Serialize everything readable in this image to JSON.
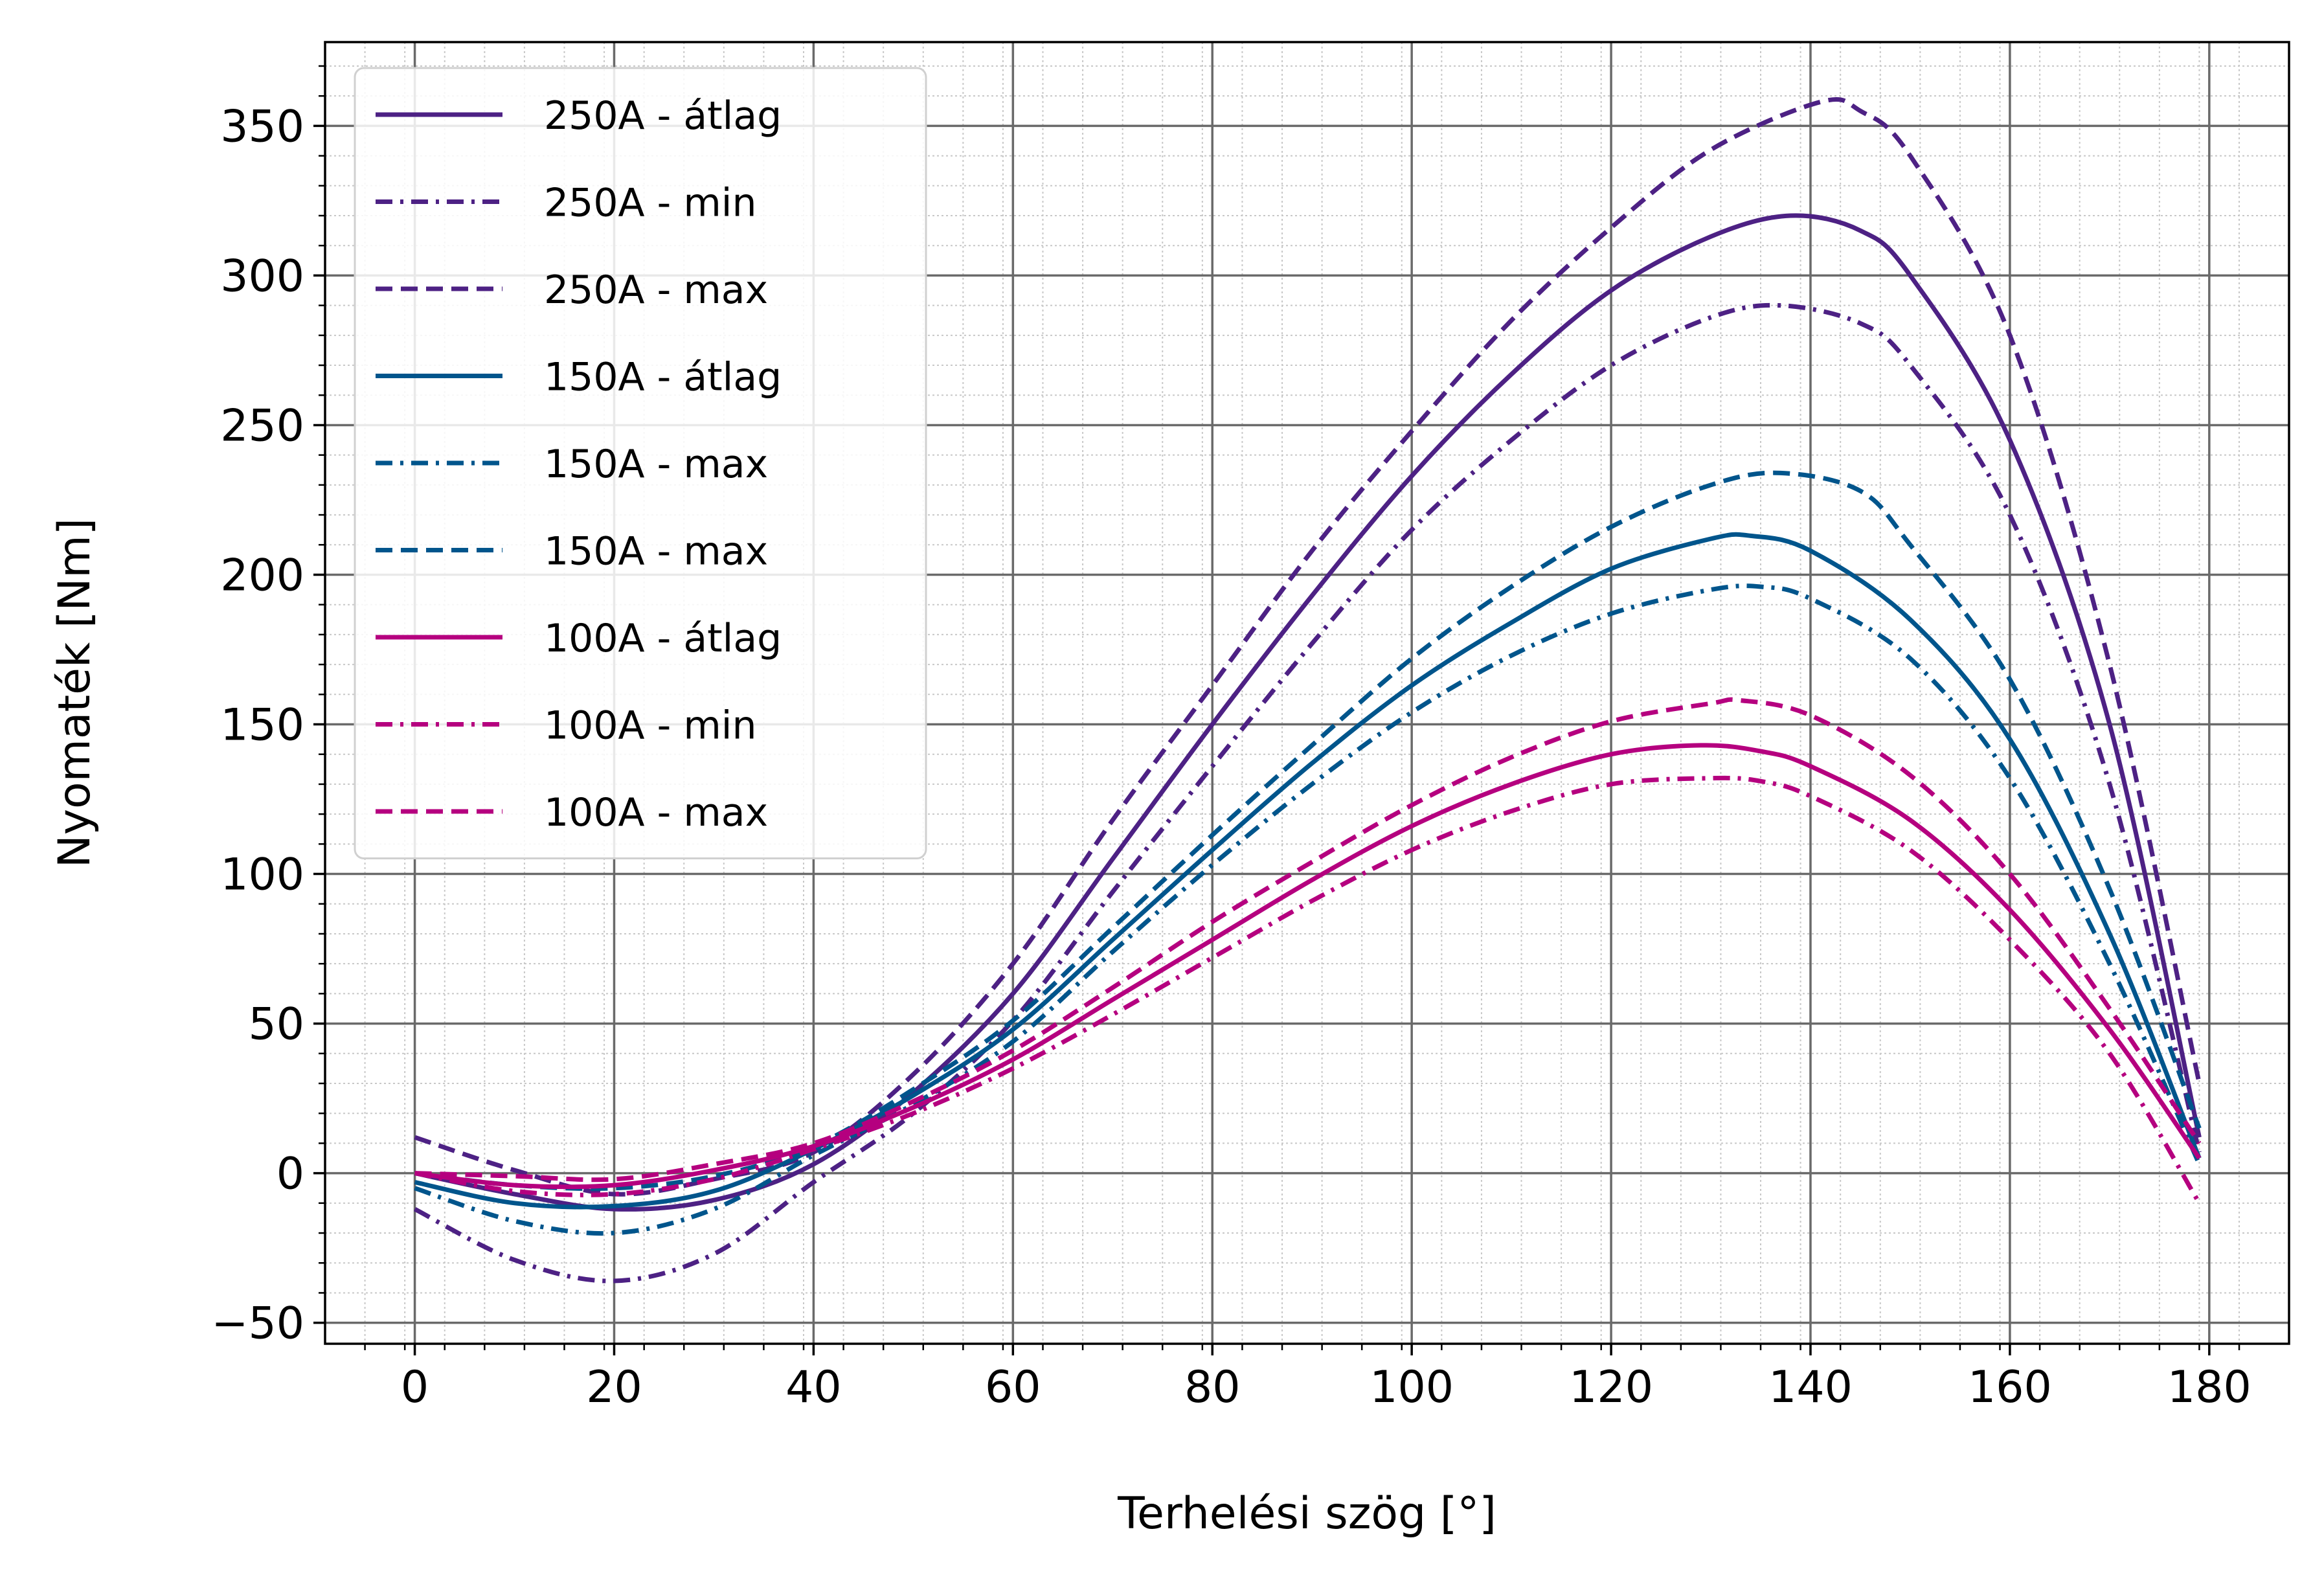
{
  "chart_data": {
    "type": "line",
    "title": "",
    "xlabel": "Terhelési szög [°]",
    "ylabel": "Nyomaték [Nm]",
    "xlim": [
      -9,
      188
    ],
    "ylim": [
      -57,
      378
    ],
    "x_ticks": [
      0,
      20,
      40,
      60,
      80,
      100,
      120,
      140,
      160,
      180
    ],
    "y_ticks": [
      -50,
      0,
      50,
      100,
      150,
      200,
      250,
      300,
      350
    ],
    "x_tick_labels": [
      "0",
      "20",
      "40",
      "60",
      "80",
      "100",
      "120",
      "140",
      "160",
      "180"
    ],
    "y_tick_labels": [
      "−50",
      "0",
      "50",
      "100",
      "150",
      "200",
      "250",
      "300",
      "350"
    ],
    "grid": {
      "major": true,
      "minor": true
    },
    "legend_position": "upper-left",
    "colors": {
      "250A": "#4d2184",
      "150A": "#00558c",
      "100A": "#b5007f"
    },
    "series": [
      {
        "name": "250A - átlag",
        "color": "#4d2184",
        "dash": "solid",
        "values": [
          [
            0,
            0
          ],
          [
            10,
            -7
          ],
          [
            20,
            -12
          ],
          [
            30,
            -9
          ],
          [
            40,
            3
          ],
          [
            50,
            27
          ],
          [
            60,
            60
          ],
          [
            70,
            105
          ],
          [
            80,
            150
          ],
          [
            90,
            193
          ],
          [
            100,
            233
          ],
          [
            110,
            267
          ],
          [
            120,
            295
          ],
          [
            130,
            313
          ],
          [
            138,
            320
          ],
          [
            145,
            315
          ],
          [
            150,
            300
          ],
          [
            160,
            245
          ],
          [
            170,
            150
          ],
          [
            179,
            12
          ]
        ]
      },
      {
        "name": "250A - min",
        "color": "#4d2184",
        "dash": "dashdot",
        "values": [
          [
            0,
            -12
          ],
          [
            10,
            -29
          ],
          [
            20,
            -36
          ],
          [
            30,
            -27
          ],
          [
            40,
            -3
          ],
          [
            50,
            20
          ],
          [
            60,
            51
          ],
          [
            70,
            94
          ],
          [
            80,
            136
          ],
          [
            90,
            177
          ],
          [
            100,
            215
          ],
          [
            110,
            245
          ],
          [
            120,
            270
          ],
          [
            130,
            286
          ],
          [
            137,
            290
          ],
          [
            145,
            284
          ],
          [
            150,
            270
          ],
          [
            160,
            220
          ],
          [
            170,
            130
          ],
          [
            179,
            7
          ]
        ]
      },
      {
        "name": "250A - max",
        "color": "#4d2184",
        "dash": "dashed",
        "values": [
          [
            0,
            12
          ],
          [
            10,
            1
          ],
          [
            20,
            -7
          ],
          [
            30,
            -2
          ],
          [
            40,
            7
          ],
          [
            50,
            33
          ],
          [
            60,
            70
          ],
          [
            70,
            118
          ],
          [
            80,
            163
          ],
          [
            90,
            208
          ],
          [
            100,
            248
          ],
          [
            110,
            285
          ],
          [
            120,
            316
          ],
          [
            130,
            342
          ],
          [
            141,
            358
          ],
          [
            145,
            355
          ],
          [
            150,
            340
          ],
          [
            160,
            280
          ],
          [
            170,
            170
          ],
          [
            179,
            30
          ]
        ]
      },
      {
        "name": "150A - átlag",
        "color": "#00558c",
        "dash": "solid",
        "values": [
          [
            0,
            -3
          ],
          [
            10,
            -10
          ],
          [
            20,
            -11
          ],
          [
            30,
            -6
          ],
          [
            40,
            8
          ],
          [
            50,
            26
          ],
          [
            60,
            48
          ],
          [
            70,
            78
          ],
          [
            80,
            108
          ],
          [
            90,
            137
          ],
          [
            100,
            163
          ],
          [
            110,
            184
          ],
          [
            120,
            202
          ],
          [
            130,
            212
          ],
          [
            134,
            213
          ],
          [
            140,
            208
          ],
          [
            150,
            185
          ],
          [
            160,
            145
          ],
          [
            170,
            80
          ],
          [
            179,
            5
          ]
        ]
      },
      {
        "name": "150A - max",
        "color": "#00558c",
        "dash": "dashdot",
        "values": [
          [
            0,
            -5
          ],
          [
            10,
            -16
          ],
          [
            20,
            -20
          ],
          [
            30,
            -12
          ],
          [
            40,
            6
          ],
          [
            50,
            23
          ],
          [
            60,
            44
          ],
          [
            70,
            74
          ],
          [
            80,
            103
          ],
          [
            90,
            130
          ],
          [
            100,
            154
          ],
          [
            110,
            173
          ],
          [
            120,
            187
          ],
          [
            130,
            195
          ],
          [
            135,
            196
          ],
          [
            140,
            192
          ],
          [
            150,
            172
          ],
          [
            160,
            132
          ],
          [
            170,
            70
          ],
          [
            179,
            3
          ]
        ]
      },
      {
        "name": "150A - max",
        "color": "#00558c",
        "dash": "dashed",
        "values": [
          [
            0,
            0
          ],
          [
            10,
            -4
          ],
          [
            20,
            -5
          ],
          [
            30,
            -1
          ],
          [
            40,
            9
          ],
          [
            50,
            28
          ],
          [
            60,
            51
          ],
          [
            70,
            82
          ],
          [
            80,
            113
          ],
          [
            90,
            143
          ],
          [
            100,
            172
          ],
          [
            110,
            196
          ],
          [
            120,
            216
          ],
          [
            130,
            230
          ],
          [
            137,
            234
          ],
          [
            145,
            228
          ],
          [
            150,
            210
          ],
          [
            160,
            165
          ],
          [
            170,
            95
          ],
          [
            179,
            15
          ]
        ]
      },
      {
        "name": "100A - átlag",
        "color": "#b5007f",
        "dash": "solid",
        "values": [
          [
            0,
            0
          ],
          [
            10,
            -4
          ],
          [
            20,
            -4
          ],
          [
            30,
            1
          ],
          [
            40,
            9
          ],
          [
            50,
            22
          ],
          [
            60,
            38
          ],
          [
            70,
            58
          ],
          [
            80,
            78
          ],
          [
            90,
            98
          ],
          [
            100,
            116
          ],
          [
            110,
            130
          ],
          [
            120,
            140
          ],
          [
            129,
            143
          ],
          [
            135,
            141
          ],
          [
            140,
            136
          ],
          [
            150,
            118
          ],
          [
            160,
            88
          ],
          [
            170,
            48
          ],
          [
            179,
            5
          ]
        ]
      },
      {
        "name": "100A - min",
        "color": "#b5007f",
        "dash": "dashdot",
        "values": [
          [
            0,
            0
          ],
          [
            10,
            -6
          ],
          [
            20,
            -7
          ],
          [
            30,
            -2
          ],
          [
            40,
            8
          ],
          [
            50,
            20
          ],
          [
            60,
            35
          ],
          [
            70,
            53
          ],
          [
            80,
            72
          ],
          [
            90,
            91
          ],
          [
            100,
            108
          ],
          [
            110,
            121
          ],
          [
            120,
            130
          ],
          [
            130,
            132
          ],
          [
            135,
            131
          ],
          [
            140,
            126
          ],
          [
            150,
            108
          ],
          [
            160,
            78
          ],
          [
            170,
            40
          ],
          [
            179,
            -10
          ]
        ]
      },
      {
        "name": "100A - max",
        "color": "#b5007f",
        "dash": "dashed",
        "values": [
          [
            0,
            0
          ],
          [
            10,
            -1
          ],
          [
            20,
            -2
          ],
          [
            30,
            3
          ],
          [
            40,
            10
          ],
          [
            50,
            24
          ],
          [
            60,
            41
          ],
          [
            70,
            62
          ],
          [
            80,
            84
          ],
          [
            90,
            104
          ],
          [
            100,
            123
          ],
          [
            110,
            139
          ],
          [
            120,
            151
          ],
          [
            130,
            157
          ],
          [
            133,
            158
          ],
          [
            140,
            153
          ],
          [
            150,
            133
          ],
          [
            160,
            100
          ],
          [
            170,
            55
          ],
          [
            179,
            10
          ]
        ]
      }
    ]
  }
}
